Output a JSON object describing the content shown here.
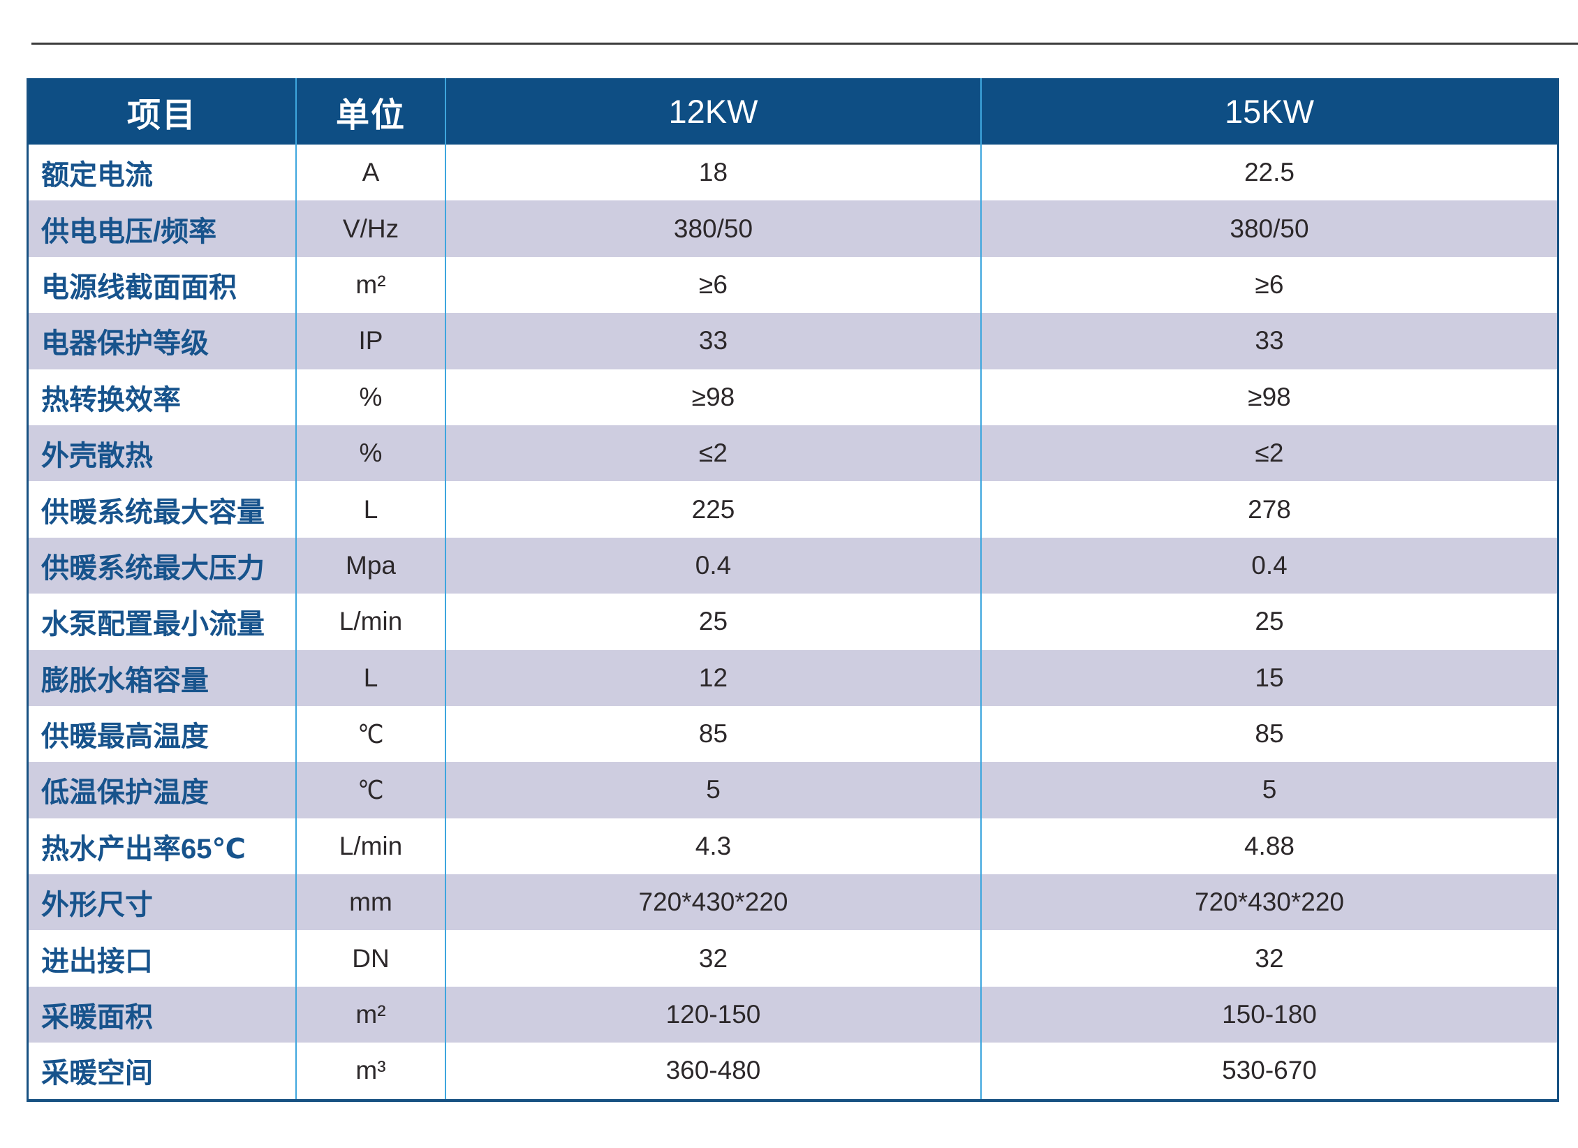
{
  "colors": {
    "header_background": "#0e4e84",
    "header_text": "#ffffff",
    "row_stripe": "#cecde0",
    "row_white": "#ffffff",
    "label_text": "#17538c",
    "value_text": "#2c282a",
    "column_separator": "#3ea6de",
    "table_border": "#175182",
    "top_rule": "#3c3c3c"
  },
  "table": {
    "columns": [
      "项目",
      "单位",
      "12KW",
      "15KW"
    ],
    "rows": [
      {
        "item": "额定电流",
        "unit": "A",
        "kw12": "18",
        "kw15": "22.5"
      },
      {
        "item": "供电电压/频率",
        "unit": "V/Hz",
        "kw12": "380/50",
        "kw15": "380/50"
      },
      {
        "item": "电源线截面面积",
        "unit": "m²",
        "kw12": "≥6",
        "kw15": "≥6"
      },
      {
        "item": "电器保护等级",
        "unit": "IP",
        "kw12": "33",
        "kw15": "33"
      },
      {
        "item": "热转换效率",
        "unit": "%",
        "kw12": "≥98",
        "kw15": "≥98"
      },
      {
        "item": "外壳散热",
        "unit": "%",
        "kw12": "≤2",
        "kw15": "≤2"
      },
      {
        "item": "供暖系统最大容量",
        "unit": "L",
        "kw12": "225",
        "kw15": "278"
      },
      {
        "item": "供暖系统最大压力",
        "unit": "Mpa",
        "kw12": "0.4",
        "kw15": "0.4"
      },
      {
        "item": "水泵配置最小流量",
        "unit": "L/min",
        "kw12": "25",
        "kw15": "25"
      },
      {
        "item": "膨胀水箱容量",
        "unit": "L",
        "kw12": "12",
        "kw15": "15"
      },
      {
        "item": "供暖最高温度",
        "unit": "℃",
        "kw12": "85",
        "kw15": "85"
      },
      {
        "item": "低温保护温度",
        "unit": "℃",
        "kw12": "5",
        "kw15": "5"
      },
      {
        "item": "热水产出率65℃",
        "unit": "L/min",
        "kw12": "4.3",
        "kw15": "4.88"
      },
      {
        "item": "外形尺寸",
        "unit": "mm",
        "kw12": "720*430*220",
        "kw15": "720*430*220"
      },
      {
        "item": "进出接口",
        "unit": "DN",
        "kw12": "32",
        "kw15": "32"
      },
      {
        "item": "采暖面积",
        "unit": "m²",
        "kw12": "120-150",
        "kw15": "150-180"
      },
      {
        "item": "采暖空间",
        "unit": "m³",
        "kw12": "360-480",
        "kw15": "530-670"
      }
    ]
  }
}
